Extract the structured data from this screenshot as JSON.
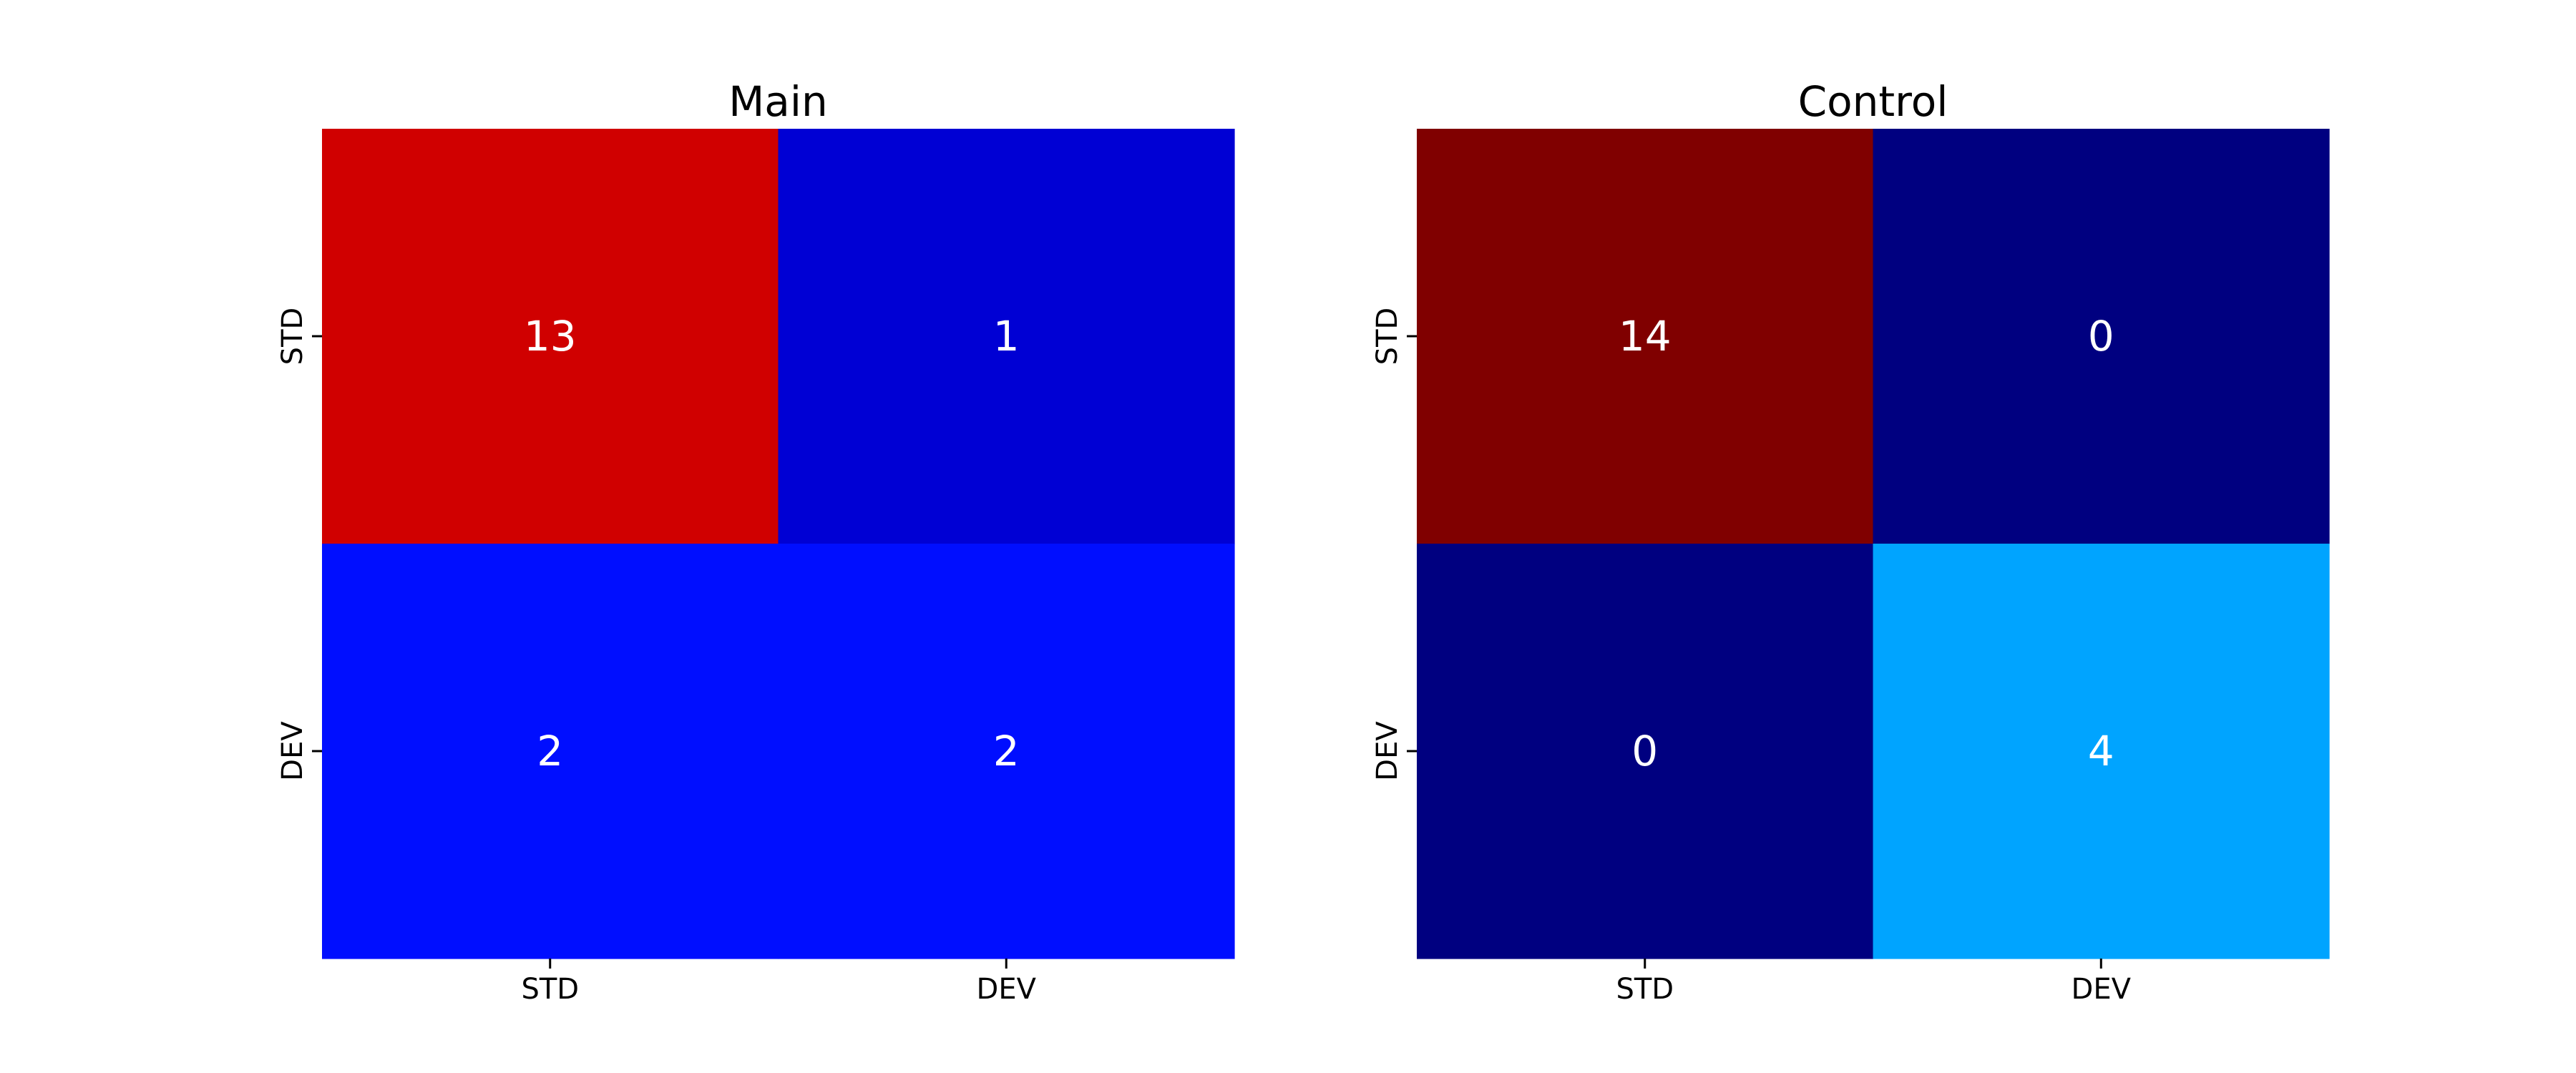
{
  "chart_data": [
    {
      "type": "heatmap",
      "title": "Main",
      "x_categories": [
        "STD",
        "DEV"
      ],
      "y_categories": [
        "STD",
        "DEV"
      ],
      "values": [
        [
          13,
          1
        ],
        [
          2,
          2
        ]
      ],
      "colormap": "jet",
      "value_range": [
        1,
        13
      ],
      "colorbar": false,
      "cell_colors": [
        [
          "#d00000",
          "#0000d4"
        ],
        [
          "#000eff",
          "#000eff"
        ]
      ],
      "grid": false
    },
    {
      "type": "heatmap",
      "title": "Control",
      "x_categories": [
        "STD",
        "DEV"
      ],
      "y_categories": [
        "STD",
        "DEV"
      ],
      "values": [
        [
          14,
          0
        ],
        [
          0,
          4
        ]
      ],
      "colormap": "jet",
      "value_range": [
        0,
        14
      ],
      "colorbar": false,
      "cell_colors": [
        [
          "#800000",
          "#000080"
        ],
        [
          "#000080",
          "#00a4ff"
        ]
      ],
      "grid": false
    }
  ]
}
